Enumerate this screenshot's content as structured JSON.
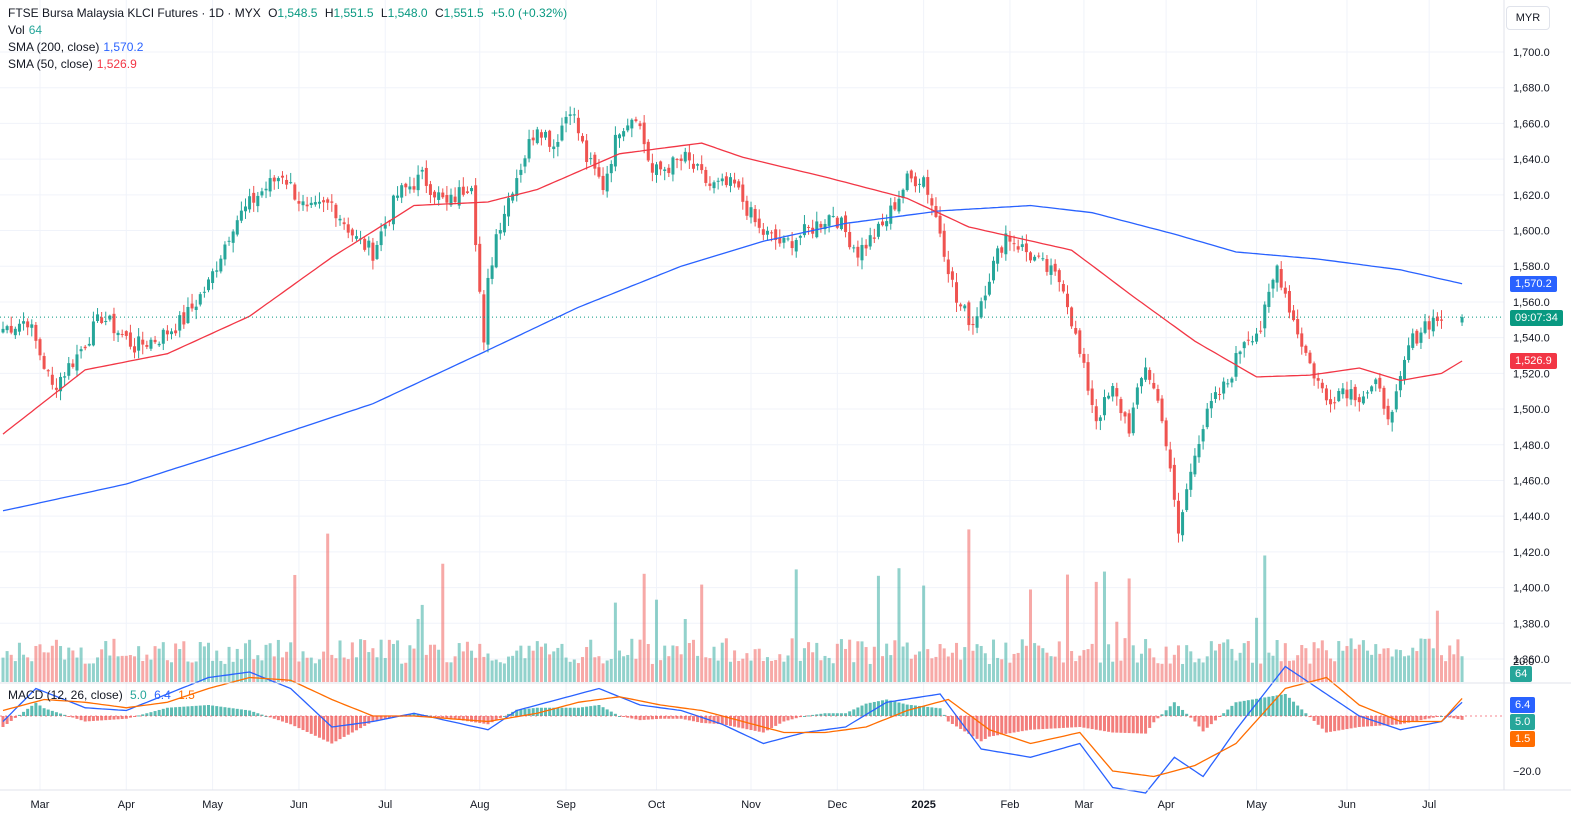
{
  "header": {
    "symbol": "FTSE Bursa Malaysia KLCI Futures · 1D · MYX",
    "o_label": "O",
    "o_value": "1,548.5",
    "h_label": "H",
    "h_value": "1,551.5",
    "l_label": "L",
    "l_value": "1,548.0",
    "c_label": "C",
    "c_value": "1,551.5",
    "change": "+5.0 (+0.32%)"
  },
  "vol_legend": {
    "label": "Vol",
    "value": "64"
  },
  "sma200_legend": {
    "label": "SMA (200, close)",
    "value": "1,570.2"
  },
  "sma50_legend": {
    "label": "SMA (50, close)",
    "value": "1,526.9"
  },
  "macd_legend": {
    "label": "MACD (12, 26, close)",
    "macd": "5.0",
    "signal": "6.4",
    "hist": "1.5"
  },
  "currency": "MYR",
  "badges": {
    "sma200": "1,570.2",
    "price_time": "09:07:34",
    "sma50": "1,526.9",
    "volume": "64",
    "macd_signal": "6.4",
    "macd": "5.0",
    "macd_hist": "1.5"
  },
  "colors": {
    "up": "#26a69a",
    "down": "#ef5350",
    "sma200": "#2962ff",
    "sma50": "#f23645",
    "macd": "#2962ff",
    "signal": "#ff6d00"
  },
  "chart_data": {
    "type": "candlestick",
    "title": "FTSE Bursa Malaysia KLCI Futures",
    "price_axis": {
      "ticks": [
        1360,
        1380,
        1400,
        1420,
        1440,
        1460,
        1480,
        1500,
        1520,
        1540,
        1560,
        1580,
        1600,
        1620,
        1640,
        1660,
        1680,
        1700
      ],
      "range": [
        1352,
        1710
      ]
    },
    "macd_axis": {
      "ticks": [
        20.0,
        -20.0
      ],
      "tick_labels": [
        "20.0",
        "−20.0"
      ],
      "range": [
        -26,
        24
      ]
    },
    "time_axis": {
      "labels": [
        "Mar",
        "Apr",
        "May",
        "Jun",
        "Jul",
        "Aug",
        "Sep",
        "Oct",
        "Nov",
        "Dec",
        "2025",
        "Feb",
        "Mar",
        "Apr",
        "May",
        "Jun",
        "Jul"
      ],
      "label_positions_bar_index": [
        9,
        30,
        51,
        72,
        93,
        116,
        137,
        159,
        182,
        203,
        224,
        245,
        263,
        283,
        305,
        327,
        347
      ]
    },
    "series": [
      {
        "name": "SMA (200, close)",
        "last": 1570.2,
        "keypoints_bar_index": [
          0,
          30,
          60,
          90,
          118,
          140,
          165,
          185,
          205,
          228,
          250,
          265,
          285,
          300,
          320,
          340,
          355
        ],
        "keypoints_value": [
          1443,
          1458,
          1480,
          1503,
          1533,
          1557,
          1580,
          1594,
          1604,
          1611,
          1614,
          1610,
          1598,
          1588,
          1584,
          1578,
          1570.2
        ]
      },
      {
        "name": "SMA (50, close)",
        "last": 1526.9,
        "keypoints_bar_index": [
          0,
          20,
          40,
          60,
          80,
          100,
          118,
          130,
          150,
          170,
          180,
          200,
          220,
          235,
          260,
          275,
          290,
          305,
          318,
          330,
          340,
          350,
          355
        ],
        "keypoints_value": [
          1486,
          1522,
          1531,
          1552,
          1585,
          1614,
          1616,
          1623,
          1643,
          1649,
          1641,
          1630,
          1618,
          1602,
          1589,
          1563,
          1538,
          1518,
          1519,
          1523,
          1516,
          1520,
          1526.9
        ]
      },
      {
        "name": "Close (approx.)",
        "keypoints_bar_index": [
          0,
          6,
          12,
          18,
          24,
          32,
          38,
          44,
          50,
          56,
          62,
          68,
          74,
          80,
          86,
          90,
          96,
          102,
          108,
          114,
          117,
          118,
          120,
          124,
          130,
          134,
          138,
          142,
          146,
          150,
          154,
          158,
          162,
          166,
          172,
          178,
          184,
          190,
          196,
          202,
          208,
          214,
          220,
          224,
          228,
          232,
          236,
          240,
          244,
          248,
          254,
          258,
          262,
          266,
          270,
          274,
          278,
          282,
          286,
          290,
          294,
          298,
          302,
          306,
          310,
          314,
          318,
          322,
          326,
          330,
          334,
          338,
          342,
          346,
          350,
          355
        ],
        "keypoints_value": [
          1545,
          1550,
          1512,
          1530,
          1552,
          1535,
          1540,
          1550,
          1570,
          1604,
          1620,
          1632,
          1610,
          1615,
          1595,
          1588,
          1620,
          1630,
          1614,
          1628,
          1534,
          1570,
          1598,
          1625,
          1660,
          1648,
          1670,
          1640,
          1625,
          1658,
          1666,
          1632,
          1636,
          1640,
          1625,
          1625,
          1600,
          1592,
          1600,
          1610,
          1588,
          1602,
          1628,
          1630,
          1600,
          1560,
          1548,
          1575,
          1598,
          1590,
          1578,
          1570,
          1530,
          1495,
          1510,
          1490,
          1525,
          1497,
          1430,
          1478,
          1502,
          1515,
          1540,
          1545,
          1580,
          1550,
          1525,
          1505,
          1512,
          1508,
          1512,
          1495,
          1535,
          1548,
          1551.5
        ]
      },
      {
        "name": "MACD (12, 26, close)",
        "last": 5.0,
        "keypoints_bar_index": [
          0,
          8,
          20,
          30,
          40,
          50,
          60,
          70,
          80,
          90,
          100,
          118,
          125,
          135,
          145,
          155,
          165,
          175,
          185,
          195,
          205,
          215,
          228,
          238,
          250,
          262,
          270,
          278,
          285,
          292,
          300,
          312,
          320,
          330,
          340,
          350,
          355
        ],
        "keypoints_value": [
          -2,
          10,
          3,
          2,
          8,
          14,
          16,
          10,
          -4,
          -2,
          1,
          -5,
          2,
          6,
          10,
          4,
          2,
          -3,
          -10,
          -6,
          -4,
          5,
          8,
          -12,
          -15,
          -10,
          -26,
          -28,
          -15,
          -22,
          -5,
          18,
          10,
          0,
          -5,
          -2,
          5.0
        ]
      },
      {
        "name": "Signal",
        "last": 6.4,
        "keypoints_bar_index": [
          0,
          10,
          20,
          30,
          40,
          50,
          60,
          70,
          80,
          90,
          100,
          118,
          130,
          140,
          150,
          160,
          170,
          180,
          190,
          200,
          210,
          220,
          230,
          240,
          250,
          262,
          270,
          280,
          290,
          300,
          312,
          322,
          330,
          340,
          350,
          355
        ],
        "keypoints_value": [
          2,
          6,
          5,
          3,
          5,
          10,
          14,
          13,
          6,
          0,
          0,
          -2,
          1,
          5,
          7,
          4,
          2,
          -2,
          -6,
          -6,
          -4,
          2,
          6,
          -5,
          -10,
          -6,
          -20,
          -22,
          -18,
          -10,
          10,
          14,
          4,
          -2,
          -2,
          6.4
        ]
      }
    ]
  }
}
